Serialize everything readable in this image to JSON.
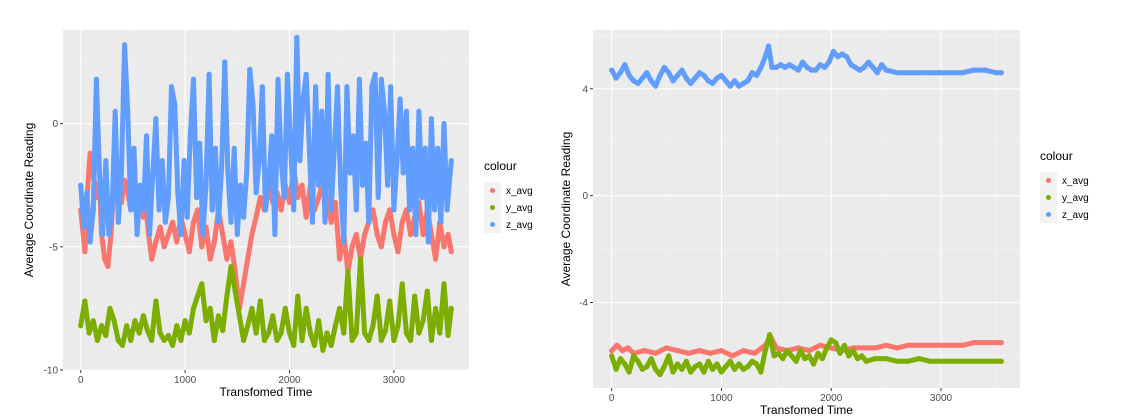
{
  "chart_data": [
    {
      "type": "scatter",
      "xlabel": "Transfomed Time",
      "ylabel": "Average Coordinate Reading",
      "xlim": [
        -170,
        3720
      ],
      "ylim": [
        -10,
        3.8
      ],
      "xticks": [
        "0",
        "1000",
        "2000",
        "3000"
      ],
      "xtick_values": [
        0,
        1000,
        2000,
        3000
      ],
      "yticks": [
        "-10",
        "-5",
        "0"
      ],
      "ytick_values": [
        -10,
        -5,
        0
      ],
      "grid": true,
      "legend": {
        "title": "colour",
        "placement": "right"
      },
      "series": [
        {
          "name": "x_avg",
          "color": "#F8766D",
          "x": [
            0,
            40,
            60,
            90,
            110,
            140,
            160,
            180,
            200,
            230,
            260,
            290,
            310,
            330,
            360,
            390,
            420,
            450,
            480,
            510,
            540,
            570,
            600,
            620,
            650,
            680,
            720,
            760,
            800,
            840,
            880,
            920,
            960,
            1000,
            1040,
            1080,
            1120,
            1160,
            1200,
            1240,
            1280,
            1320,
            1360,
            1400,
            1440,
            1480,
            1520,
            1560,
            1600,
            1640,
            1680,
            1720,
            1760,
            1800,
            1840,
            1880,
            1920,
            1960,
            2000,
            2040,
            2080,
            2120,
            2160,
            2200,
            2240,
            2280,
            2320,
            2360,
            2400,
            2440,
            2480,
            2520,
            2560,
            2600,
            2640,
            2680,
            2720,
            2760,
            2800,
            2840,
            2880,
            2920,
            2960,
            3000,
            3040,
            3080,
            3120,
            3160,
            3200,
            3240,
            3280,
            3320,
            3360,
            3400,
            3440,
            3480,
            3520,
            3550
          ],
          "values": [
            -3.5,
            -5.2,
            -3.0,
            -1.2,
            -2.0,
            -2.5,
            -3.0,
            -2.5,
            -4.5,
            -5.5,
            -5.8,
            -4.5,
            -3.0,
            -2.3,
            -2.6,
            -3.2,
            -2.3,
            -2.8,
            -3.5,
            -3.2,
            -3.8,
            -3.0,
            -3.8,
            -3.2,
            -4.5,
            -5.5,
            -4.8,
            -4.2,
            -5.0,
            -4.5,
            -4.0,
            -4.8,
            -3.8,
            -4.5,
            -5.2,
            -4.0,
            -3.5,
            -5.0,
            -4.2,
            -5.5,
            -4.8,
            -3.5,
            -4.5,
            -5.5,
            -4.8,
            -6.0,
            -7.5,
            -6.5,
            -5.5,
            -4.5,
            -3.8,
            -3.0,
            -3.5,
            -2.5,
            -3.2,
            -2.8,
            -3.5,
            -2.5,
            -3.2,
            -1.8,
            -3.0,
            -2.5,
            -3.8,
            -2.5,
            -3.5,
            -3.0,
            -2.3,
            -3.2,
            -4.0,
            -3.2,
            -5.5,
            -4.5,
            -6.0,
            -5.0,
            -4.5,
            -5.5,
            -4.5,
            -4.0,
            -3.5,
            -4.5,
            -5.0,
            -4.0,
            -3.5,
            -4.5,
            -5.2,
            -4.0,
            -3.5,
            -4.5,
            -3.8,
            -3.2,
            -4.5,
            -3.5,
            -4.5,
            -5.5,
            -4.0,
            -5.0,
            -4.5,
            -5.2
          ]
        },
        {
          "name": "y_avg",
          "color": "#7CAE00",
          "x": [
            0,
            40,
            80,
            120,
            160,
            200,
            240,
            280,
            320,
            360,
            400,
            440,
            480,
            520,
            560,
            600,
            640,
            680,
            720,
            760,
            800,
            840,
            880,
            920,
            960,
            1000,
            1040,
            1080,
            1120,
            1160,
            1200,
            1240,
            1280,
            1320,
            1360,
            1400,
            1440,
            1480,
            1520,
            1560,
            1600,
            1640,
            1680,
            1720,
            1760,
            1800,
            1840,
            1880,
            1920,
            1960,
            2000,
            2040,
            2080,
            2120,
            2160,
            2200,
            2240,
            2280,
            2320,
            2360,
            2400,
            2440,
            2480,
            2520,
            2560,
            2600,
            2640,
            2680,
            2720,
            2760,
            2800,
            2840,
            2880,
            2920,
            2960,
            3000,
            3040,
            3080,
            3120,
            3160,
            3200,
            3240,
            3280,
            3320,
            3360,
            3400,
            3440,
            3480,
            3520,
            3550
          ],
          "values": [
            -8.2,
            -7.2,
            -8.5,
            -8.0,
            -8.8,
            -8.2,
            -8.6,
            -7.5,
            -8.0,
            -8.8,
            -9.0,
            -8.2,
            -8.8,
            -8.0,
            -8.5,
            -7.8,
            -8.4,
            -8.8,
            -7.2,
            -8.5,
            -8.8,
            -8.6,
            -9.0,
            -8.2,
            -8.8,
            -8.0,
            -8.5,
            -7.5,
            -7.0,
            -6.5,
            -8.0,
            -7.5,
            -8.8,
            -7.8,
            -8.4,
            -7.0,
            -5.8,
            -6.8,
            -7.8,
            -8.8,
            -8.2,
            -7.5,
            -8.5,
            -7.2,
            -8.8,
            -8.5,
            -7.8,
            -8.8,
            -8.5,
            -7.5,
            -8.5,
            -9.0,
            -7.0,
            -8.8,
            -7.5,
            -8.5,
            -9.0,
            -8.0,
            -9.2,
            -8.5,
            -9.0,
            -8.2,
            -7.5,
            -8.5,
            -6.0,
            -8.8,
            -8.5,
            -5.5,
            -8.5,
            -8.8,
            -8.2,
            -7.0,
            -8.8,
            -8.4,
            -7.2,
            -8.8,
            -8.2,
            -6.5,
            -8.5,
            -8.8,
            -7.0,
            -8.5,
            -8.0,
            -6.8,
            -8.8,
            -7.5,
            -8.5,
            -6.5,
            -8.6,
            -7.5
          ]
        },
        {
          "name": "z_avg",
          "color": "#619CFF",
          "x": [
            0,
            30,
            60,
            90,
            120,
            150,
            180,
            210,
            240,
            270,
            300,
            330,
            360,
            390,
            420,
            450,
            480,
            510,
            540,
            570,
            600,
            630,
            660,
            690,
            720,
            750,
            780,
            810,
            840,
            870,
            900,
            930,
            960,
            990,
            1020,
            1050,
            1080,
            1110,
            1140,
            1170,
            1200,
            1230,
            1260,
            1290,
            1320,
            1350,
            1380,
            1410,
            1440,
            1470,
            1500,
            1530,
            1560,
            1590,
            1620,
            1650,
            1680,
            1710,
            1740,
            1770,
            1800,
            1830,
            1860,
            1890,
            1920,
            1950,
            1980,
            2010,
            2040,
            2070,
            2100,
            2130,
            2160,
            2190,
            2220,
            2250,
            2280,
            2310,
            2340,
            2370,
            2400,
            2430,
            2460,
            2490,
            2520,
            2550,
            2580,
            2610,
            2640,
            2670,
            2700,
            2730,
            2760,
            2790,
            2820,
            2850,
            2880,
            2910,
            2940,
            2970,
            3000,
            3030,
            3060,
            3090,
            3120,
            3150,
            3180,
            3210,
            3240,
            3270,
            3300,
            3330,
            3360,
            3390,
            3420,
            3450,
            3480,
            3510,
            3550
          ],
          "values": [
            -2.5,
            -4.2,
            -2.8,
            -4.8,
            -3.5,
            1.8,
            -2.0,
            -4.5,
            -1.5,
            -4.5,
            -3.5,
            0.5,
            -4.0,
            -2.0,
            3.2,
            0.5,
            -3.5,
            -1.0,
            -4.5,
            -2.5,
            -3.5,
            -0.5,
            -4.5,
            -2.0,
            0.2,
            -3.5,
            -1.5,
            -4.0,
            -3.0,
            1.5,
            0.8,
            -2.8,
            -4.5,
            -1.5,
            -3.8,
            -0.5,
            1.8,
            -3.0,
            -0.8,
            -4.5,
            -2.5,
            2.0,
            -3.5,
            -1.0,
            -4.0,
            -1.8,
            2.5,
            -2.0,
            -4.0,
            -1.0,
            -4.5,
            -2.5,
            -3.8,
            -2.0,
            2.2,
            0.8,
            -2.8,
            -1.5,
            1.5,
            -3.5,
            -2.5,
            -0.5,
            -4.5,
            1.8,
            -1.5,
            -3.0,
            2.0,
            -0.8,
            -3.5,
            3.5,
            -1.5,
            1.0,
            2.0,
            -1.0,
            -4.0,
            1.5,
            -2.5,
            0.5,
            -4.0,
            2.0,
            -3.5,
            -1.0,
            1.5,
            -2.5,
            -4.8,
            1.5,
            -2.0,
            -0.5,
            -3.5,
            1.8,
            -2.5,
            -0.8,
            -4.0,
            1.5,
            2.0,
            -3.0,
            1.8,
            0.5,
            -2.5,
            1.5,
            -3.5,
            -1.5,
            1.0,
            -2.0,
            0.5,
            -3.5,
            -1.0,
            -4.5,
            0.5,
            -3.0,
            -1.0,
            -4.8,
            0.2,
            -3.5,
            -1.0,
            -4.0,
            0.0,
            -3.5,
            -1.5
          ]
        }
      ]
    },
    {
      "type": "scatter",
      "xlabel": "Transfomed Time",
      "ylabel": "Average Coordinate Reading",
      "xlim": [
        -170,
        3720
      ],
      "ylim": [
        -7.2,
        6.2
      ],
      "xticks": [
        "0",
        "1000",
        "2000",
        "3000"
      ],
      "xtick_values": [
        0,
        1000,
        2000,
        3000
      ],
      "yticks": [
        "-4",
        "0",
        "4"
      ],
      "ytick_values": [
        -4,
        0,
        4
      ],
      "grid": true,
      "legend": {
        "title": "colour",
        "placement": "right"
      },
      "series": [
        {
          "name": "x_avg",
          "color": "#F8766D",
          "x": [
            0,
            50,
            100,
            150,
            200,
            300,
            400,
            500,
            600,
            700,
            800,
            900,
            1000,
            1100,
            1200,
            1300,
            1400,
            1450,
            1500,
            1600,
            1700,
            1800,
            1900,
            2000,
            2100,
            2200,
            2300,
            2400,
            2500,
            2600,
            2700,
            2800,
            2900,
            3000,
            3100,
            3200,
            3300,
            3400,
            3500,
            3550
          ],
          "values": [
            -5.8,
            -5.6,
            -5.8,
            -5.7,
            -5.9,
            -5.8,
            -5.9,
            -5.7,
            -5.8,
            -5.9,
            -5.8,
            -5.9,
            -5.8,
            -6.0,
            -5.8,
            -5.9,
            -5.6,
            -5.3,
            -5.7,
            -5.8,
            -5.7,
            -5.8,
            -5.6,
            -5.7,
            -5.8,
            -5.7,
            -5.7,
            -5.7,
            -5.6,
            -5.7,
            -5.6,
            -5.6,
            -5.6,
            -5.6,
            -5.6,
            -5.6,
            -5.5,
            -5.5,
            -5.5,
            -5.5
          ]
        },
        {
          "name": "y_avg",
          "color": "#7CAE00",
          "x": [
            0,
            40,
            80,
            120,
            160,
            200,
            240,
            280,
            320,
            360,
            400,
            440,
            480,
            520,
            560,
            600,
            640,
            680,
            720,
            760,
            800,
            840,
            880,
            920,
            960,
            1000,
            1040,
            1080,
            1120,
            1160,
            1200,
            1240,
            1280,
            1320,
            1360,
            1400,
            1440,
            1480,
            1520,
            1560,
            1600,
            1640,
            1680,
            1720,
            1760,
            1800,
            1840,
            1880,
            1920,
            1960,
            2000,
            2040,
            2080,
            2120,
            2160,
            2200,
            2240,
            2280,
            2320,
            2400,
            2500,
            2600,
            2700,
            2800,
            2900,
            3000,
            3100,
            3200,
            3300,
            3400,
            3500,
            3550
          ],
          "values": [
            -6.0,
            -6.5,
            -6.1,
            -6.3,
            -6.6,
            -6.0,
            -6.2,
            -6.5,
            -6.4,
            -6.1,
            -6.5,
            -6.7,
            -6.4,
            -6.0,
            -6.6,
            -6.3,
            -6.5,
            -6.2,
            -6.6,
            -6.4,
            -6.3,
            -6.6,
            -6.2,
            -6.5,
            -6.3,
            -6.6,
            -6.4,
            -6.2,
            -6.5,
            -6.3,
            -6.5,
            -6.4,
            -6.2,
            -6.3,
            -6.6,
            -5.8,
            -5.2,
            -6.0,
            -5.9,
            -6.1,
            -5.8,
            -6.0,
            -6.2,
            -5.8,
            -6.1,
            -6.0,
            -6.3,
            -5.9,
            -6.1,
            -5.7,
            -5.4,
            -5.5,
            -5.9,
            -5.6,
            -6.0,
            -5.8,
            -6.1,
            -6.0,
            -6.2,
            -6.1,
            -6.1,
            -6.2,
            -6.2,
            -6.1,
            -6.2,
            -6.2,
            -6.2,
            -6.2,
            -6.2,
            -6.2,
            -6.2,
            -6.2
          ]
        },
        {
          "name": "z_avg",
          "color": "#619CFF",
          "x": [
            0,
            40,
            80,
            120,
            160,
            200,
            240,
            280,
            320,
            360,
            400,
            440,
            480,
            520,
            560,
            600,
            640,
            680,
            720,
            760,
            800,
            840,
            880,
            920,
            960,
            1000,
            1040,
            1080,
            1120,
            1160,
            1200,
            1240,
            1280,
            1320,
            1360,
            1400,
            1430,
            1460,
            1500,
            1540,
            1580,
            1620,
            1660,
            1700,
            1740,
            1780,
            1820,
            1860,
            1900,
            1940,
            1980,
            2020,
            2060,
            2100,
            2140,
            2180,
            2220,
            2260,
            2300,
            2340,
            2380,
            2420,
            2460,
            2500,
            2600,
            2700,
            2800,
            2900,
            3000,
            3100,
            3200,
            3300,
            3400,
            3500,
            3550
          ],
          "values": [
            4.7,
            4.4,
            4.6,
            4.9,
            4.5,
            4.3,
            4.2,
            4.4,
            4.6,
            4.3,
            4.1,
            4.5,
            4.8,
            4.6,
            4.3,
            4.5,
            4.7,
            4.4,
            4.2,
            4.4,
            4.6,
            4.5,
            4.3,
            4.2,
            4.4,
            4.5,
            4.3,
            4.1,
            4.3,
            4.1,
            4.2,
            4.3,
            4.6,
            4.5,
            4.8,
            5.2,
            5.6,
            4.8,
            4.8,
            4.9,
            4.8,
            4.9,
            4.8,
            4.7,
            5.0,
            4.8,
            4.7,
            4.7,
            4.9,
            4.8,
            5.0,
            5.4,
            5.2,
            5.3,
            5.2,
            4.9,
            4.8,
            4.7,
            4.8,
            5.0,
            4.8,
            4.6,
            4.9,
            4.7,
            4.6,
            4.6,
            4.6,
            4.6,
            4.6,
            4.6,
            4.6,
            4.7,
            4.7,
            4.6,
            4.6
          ]
        }
      ]
    }
  ]
}
